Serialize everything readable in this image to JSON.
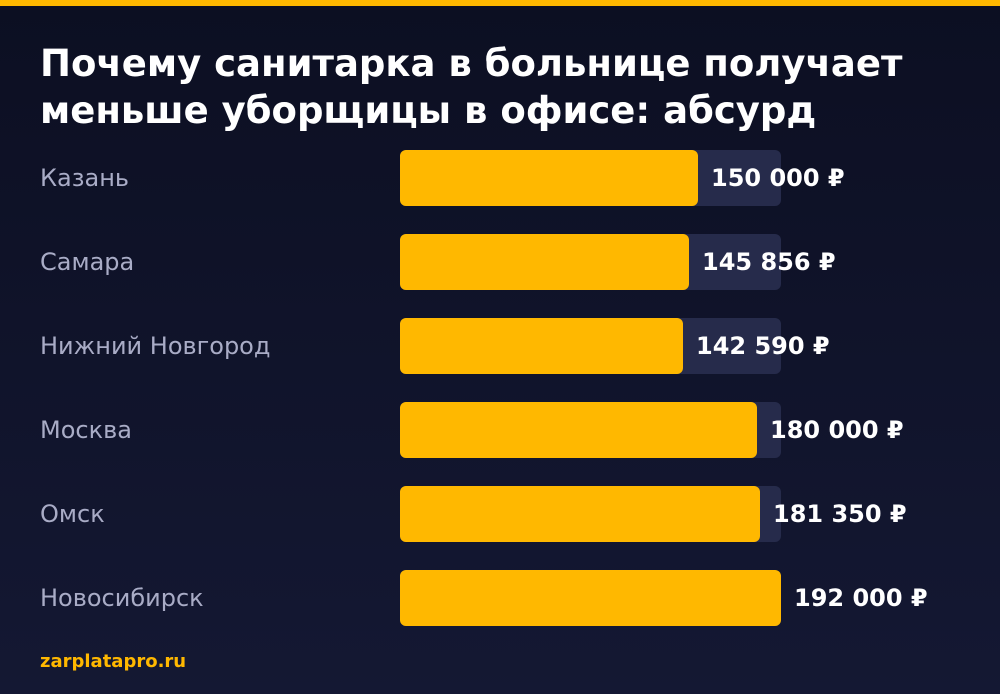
{
  "accent_color": "#ffb800",
  "footer": "zarplatapro.ru",
  "chart_data": {
    "type": "bar",
    "orientation": "horizontal",
    "title": "Почему санитарка в больнице получает меньше уборщицы в офисе: абсурд",
    "categories": [
      "Казань",
      "Самара",
      "Нижний Новгород",
      "Москва",
      "Омск",
      "Новосибирск"
    ],
    "values": [
      150000,
      145856,
      142590,
      180000,
      181350,
      192000
    ],
    "value_labels": [
      "150 000 ₽",
      "145 856 ₽",
      "142 590 ₽",
      "180 000 ₽",
      "181 350 ₽",
      "192 000 ₽"
    ],
    "xlim": [
      0,
      192000
    ],
    "grid": false,
    "legend": "none"
  }
}
